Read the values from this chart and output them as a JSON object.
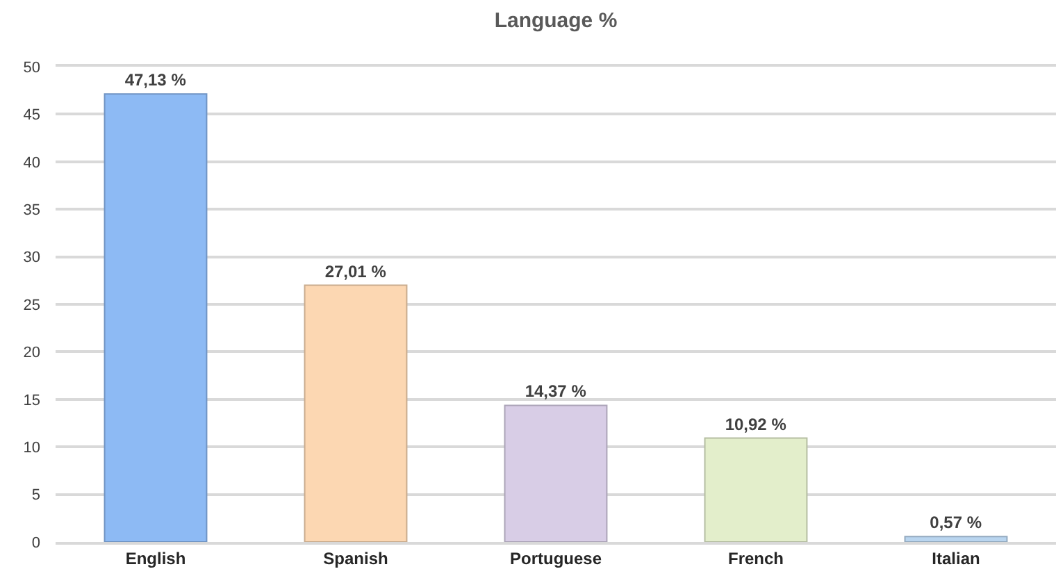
{
  "chart_data": {
    "type": "bar",
    "title": "Language %",
    "categories": [
      "English",
      "Spanish",
      "Portuguese",
      "French",
      "Italian"
    ],
    "values": [
      47.13,
      27.01,
      14.37,
      10.92,
      0.57
    ],
    "value_labels": [
      "47,13 %",
      "27,01 %",
      "14,37 %",
      "10,92 %",
      "0,57 %"
    ],
    "colors": [
      "#8dbaf4",
      "#fcd7b2",
      "#d8cde6",
      "#e3eecb",
      "#b9d5ef"
    ],
    "ylim": [
      0,
      50
    ],
    "yticks": [
      0,
      5,
      10,
      15,
      20,
      25,
      30,
      35,
      40,
      45,
      50
    ],
    "grid": "y"
  }
}
